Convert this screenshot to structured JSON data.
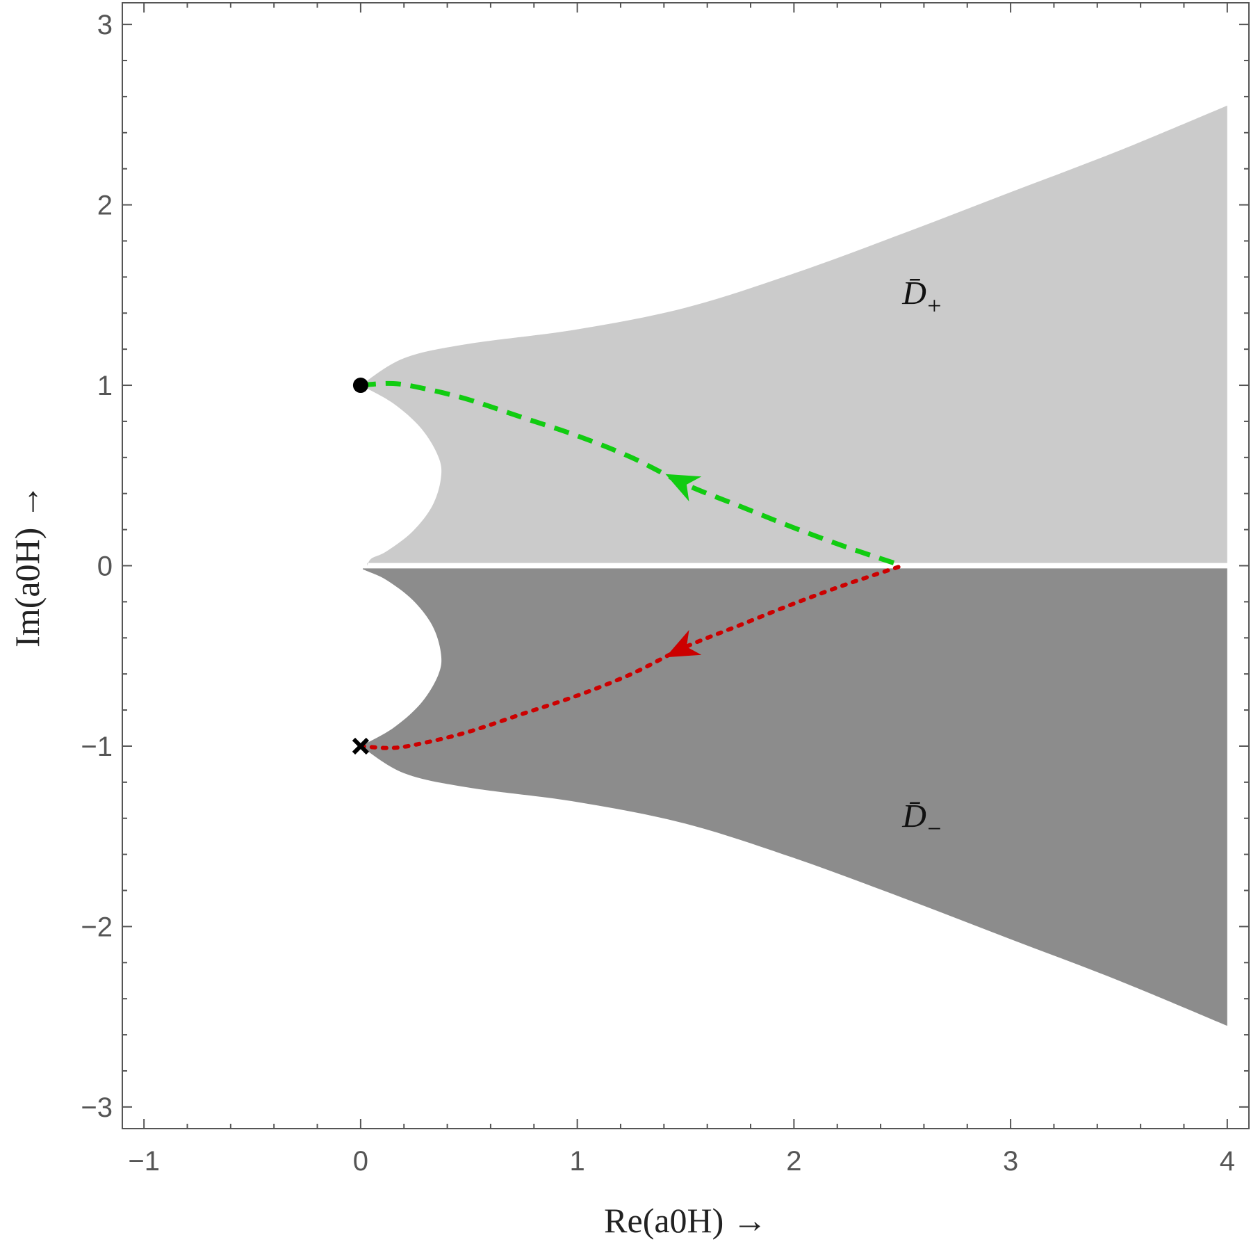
{
  "chart_data": {
    "type": "area",
    "title": "",
    "xlabel": "Re(a0H) →",
    "ylabel": "Im(a0H) →",
    "xlim": [
      -1.1,
      4.1
    ],
    "ylim": [
      -3.12,
      3.12
    ],
    "xticks": [
      -1,
      0,
      1,
      2,
      3,
      4
    ],
    "yticks": [
      -3,
      -2,
      -1,
      0,
      1,
      2,
      3
    ],
    "x_tick_labels": [
      "−1",
      "0",
      "1",
      "2",
      "3",
      "4"
    ],
    "y_tick_labels": [
      "−3",
      "−2",
      "−1",
      "0",
      "1",
      "2",
      "3"
    ],
    "grid": false,
    "colors": {
      "region_plus": "#cbcbcb",
      "region_minus": "#8c8c8c",
      "path_plus": "#11cc11",
      "path_minus": "#cc0000",
      "axes": "#555555"
    },
    "regions": [
      {
        "name": "D̄+",
        "label_base": "D̄",
        "label_sub": "+",
        "label_at": [
          2.5,
          1.45
        ],
        "upper_boundary": [
          [
            0,
            1.0
          ],
          [
            0.2,
            1.15
          ],
          [
            0.5,
            1.23
          ],
          [
            1.0,
            1.31
          ],
          [
            1.5,
            1.43
          ],
          [
            2.0,
            1.62
          ],
          [
            2.5,
            1.84
          ],
          [
            3.0,
            2.07
          ],
          [
            3.5,
            2.3
          ],
          [
            4.0,
            2.55
          ]
        ],
        "inner_boundary": [
          [
            0,
            1.0
          ],
          [
            0.15,
            0.9
          ],
          [
            0.28,
            0.76
          ],
          [
            0.36,
            0.6
          ],
          [
            0.37,
            0.48
          ],
          [
            0.33,
            0.33
          ],
          [
            0.24,
            0.19
          ],
          [
            0.12,
            0.08
          ],
          [
            0.05,
            0.04
          ],
          [
            0.03,
            0.0
          ]
        ]
      },
      {
        "name": "D̄−",
        "label_base": "D̄",
        "label_sub": "−",
        "label_at": [
          2.5,
          -1.45
        ],
        "lower_boundary": [
          [
            0,
            -1.0
          ],
          [
            0.2,
            -1.15
          ],
          [
            0.5,
            -1.23
          ],
          [
            1.0,
            -1.31
          ],
          [
            1.5,
            -1.43
          ],
          [
            2.0,
            -1.62
          ],
          [
            2.5,
            -1.84
          ],
          [
            3.0,
            -2.07
          ],
          [
            3.5,
            -2.3
          ],
          [
            4.0,
            -2.55
          ]
        ],
        "inner_boundary": [
          [
            0,
            -1.0
          ],
          [
            0.15,
            -0.9
          ],
          [
            0.28,
            -0.76
          ],
          [
            0.36,
            -0.6
          ],
          [
            0.37,
            -0.48
          ],
          [
            0.33,
            -0.33
          ],
          [
            0.24,
            -0.19
          ],
          [
            0.12,
            -0.08
          ],
          [
            0.03,
            -0.03
          ],
          [
            0.01,
            -0.02
          ]
        ]
      }
    ],
    "series": [
      {
        "style": "dashed",
        "points": [
          [
            0,
            1.0
          ],
          [
            0.15,
            1.01
          ],
          [
            0.3,
            0.98
          ],
          [
            0.5,
            0.92
          ],
          [
            0.75,
            0.82
          ],
          [
            1.0,
            0.72
          ],
          [
            1.25,
            0.6
          ],
          [
            1.5,
            0.45
          ],
          [
            1.75,
            0.33
          ],
          [
            2.0,
            0.21
          ],
          [
            2.25,
            0.1
          ],
          [
            2.5,
            0.0
          ]
        ],
        "arrow_at": [
          1.47,
          0.47
        ]
      },
      {
        "style": "dotted",
        "points": [
          [
            0,
            -1.0
          ],
          [
            0.15,
            -1.01
          ],
          [
            0.3,
            -0.98
          ],
          [
            0.5,
            -0.92
          ],
          [
            0.75,
            -0.82
          ],
          [
            1.0,
            -0.72
          ],
          [
            1.25,
            -0.6
          ],
          [
            1.5,
            -0.45
          ],
          [
            1.75,
            -0.33
          ],
          [
            2.0,
            -0.21
          ],
          [
            2.25,
            -0.1
          ],
          [
            2.5,
            0.0
          ]
        ],
        "arrow_at": [
          1.47,
          -0.47
        ]
      }
    ],
    "markers": [
      {
        "name": "start-point",
        "symbol": "dot",
        "at": [
          0,
          1.0
        ]
      },
      {
        "name": "end-point",
        "symbol": "x",
        "at": [
          0,
          -1.0
        ]
      }
    ]
  }
}
